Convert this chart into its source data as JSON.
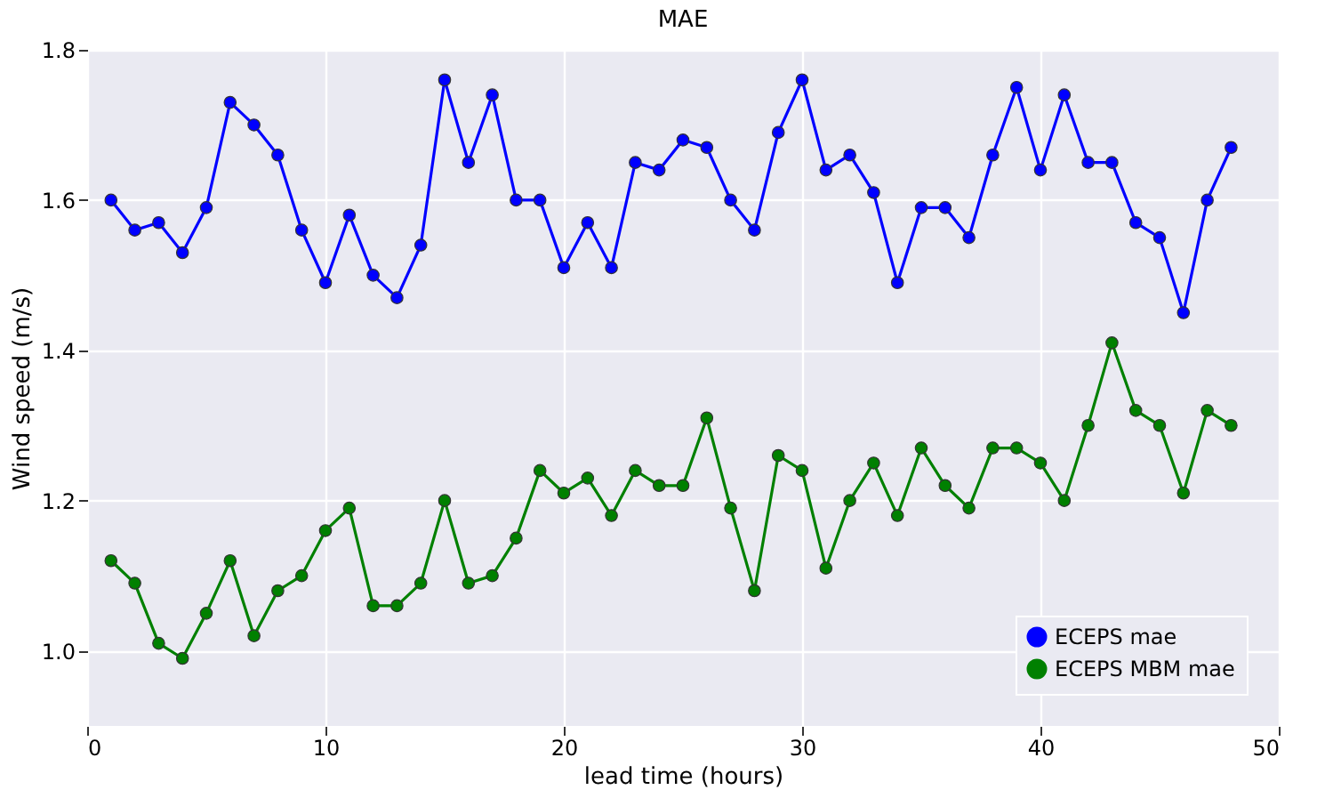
{
  "chart_data": {
    "type": "line",
    "title": "MAE",
    "xlabel": "lead time (hours)",
    "ylabel": "Wind speed (m/s)",
    "x": [
      1,
      2,
      3,
      4,
      5,
      6,
      7,
      8,
      9,
      10,
      11,
      12,
      13,
      14,
      15,
      16,
      17,
      18,
      19,
      20,
      21,
      22,
      23,
      24,
      25,
      26,
      27,
      28,
      29,
      30,
      31,
      32,
      33,
      34,
      35,
      36,
      37,
      38,
      39,
      40,
      41,
      42,
      43,
      44,
      45,
      46,
      47,
      48
    ],
    "series": [
      {
        "name": "ECEPS mae",
        "color": "#0000ff",
        "values": [
          1.6,
          1.56,
          1.57,
          1.53,
          1.59,
          1.73,
          1.7,
          1.66,
          1.56,
          1.49,
          1.58,
          1.5,
          1.47,
          1.54,
          1.76,
          1.65,
          1.74,
          1.6,
          1.6,
          1.51,
          1.57,
          1.51,
          1.65,
          1.64,
          1.68,
          1.67,
          1.6,
          1.56,
          1.69,
          1.76,
          1.64,
          1.66,
          1.61,
          1.49,
          1.59,
          1.59,
          1.55,
          1.66,
          1.75,
          1.64,
          1.74,
          1.65,
          1.65,
          1.57,
          1.55,
          1.45,
          1.6,
          1.67
        ]
      },
      {
        "name": "ECEPS MBM mae",
        "color": "#008000",
        "values": [
          1.12,
          1.09,
          1.01,
          0.99,
          1.05,
          1.12,
          1.02,
          1.08,
          1.1,
          1.16,
          1.19,
          1.06,
          1.06,
          1.09,
          1.2,
          1.09,
          1.1,
          1.15,
          1.24,
          1.21,
          1.23,
          1.18,
          1.24,
          1.22,
          1.22,
          1.31,
          1.19,
          1.08,
          1.26,
          1.24,
          1.11,
          1.2,
          1.25,
          1.18,
          1.27,
          1.22,
          1.19,
          1.27,
          1.27,
          1.25,
          1.2,
          1.3,
          1.41,
          1.32,
          1.3,
          1.21,
          1.32,
          1.3
        ]
      }
    ],
    "xlim": [
      0,
      50
    ],
    "xticks": [
      0,
      10,
      20,
      30,
      40,
      50
    ],
    "ylim": [
      0.9,
      1.8
    ],
    "yticks": [
      {
        "value": 1.0,
        "label": "1.0"
      },
      {
        "value": 1.2,
        "label": "1.2"
      },
      {
        "value": 1.4,
        "label": "1.4"
      },
      {
        "value": 1.6,
        "label": "1.6"
      },
      {
        "value": 1.8,
        "label": "1.8"
      }
    ],
    "grid": true,
    "legend": "bottom right",
    "marker": "circle",
    "line_style": "solid"
  }
}
